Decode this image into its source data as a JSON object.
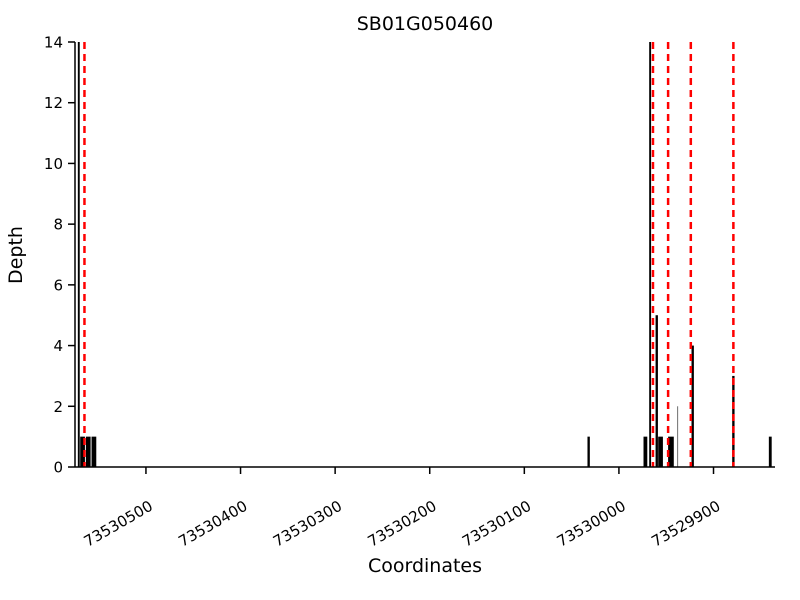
{
  "figure": {
    "title": "SB01G050460",
    "xlabel": "Coordinates",
    "ylabel": "Depth"
  },
  "chart_data": {
    "type": "bar",
    "title": "SB01G050460",
    "xlabel": "Coordinates",
    "ylabel": "Depth",
    "x_axis": {
      "left_value": 73530575,
      "right_value": 73529835,
      "reversed": true
    },
    "ylim": [
      0,
      14
    ],
    "y_ticks": [
      0,
      2,
      4,
      6,
      8,
      10,
      12,
      14
    ],
    "x_ticks": [
      73530500,
      73530400,
      73530300,
      73530200,
      73530100,
      73530000,
      73529900
    ],
    "x_tick_labels": [
      "73530500",
      "73530400",
      "73530300",
      "73530200",
      "73530100",
      "73530000",
      "73529900"
    ],
    "bar_color": "#000000",
    "bars": [
      {
        "coord": 73530571,
        "depth": 14,
        "width_units": 2,
        "color": "#000000"
      },
      {
        "coord": 73530567,
        "depth": 1,
        "width_units": 5,
        "color": "#000000"
      },
      {
        "coord": 73530561,
        "depth": 1,
        "width_units": 5,
        "color": "#000000"
      },
      {
        "coord": 73530555,
        "depth": 1,
        "width_units": 5,
        "color": "#000000"
      },
      {
        "coord": 73530032,
        "depth": 1,
        "width_units": 2.5,
        "color": "#000000"
      },
      {
        "coord": 73529972,
        "depth": 1,
        "width_units": 4,
        "color": "#000000"
      },
      {
        "coord": 73529967,
        "depth": 14,
        "width_units": 2,
        "color": "#000000"
      },
      {
        "coord": 73529960,
        "depth": 5,
        "width_units": 2.5,
        "color": "#000000"
      },
      {
        "coord": 73529956,
        "depth": 1,
        "width_units": 5,
        "color": "#000000"
      },
      {
        "coord": 73529945,
        "depth": 1,
        "width_units": 6,
        "color": "#000000"
      },
      {
        "coord": 73529938,
        "depth": 2,
        "width_units": 1.2,
        "color": "#808080"
      },
      {
        "coord": 73529922,
        "depth": 4,
        "width_units": 2.5,
        "color": "#000000"
      },
      {
        "coord": 73529879,
        "depth": 3,
        "width_units": 2.5,
        "color": "#000000"
      },
      {
        "coord": 73529840,
        "depth": 1,
        "width_units": 3,
        "color": "#000000"
      }
    ],
    "marker_lines": {
      "color": "#ff0000",
      "style": "dashed",
      "coords": [
        73530565,
        73529964,
        73529948,
        73529924,
        73529879
      ]
    },
    "grid": false,
    "legend": null
  }
}
